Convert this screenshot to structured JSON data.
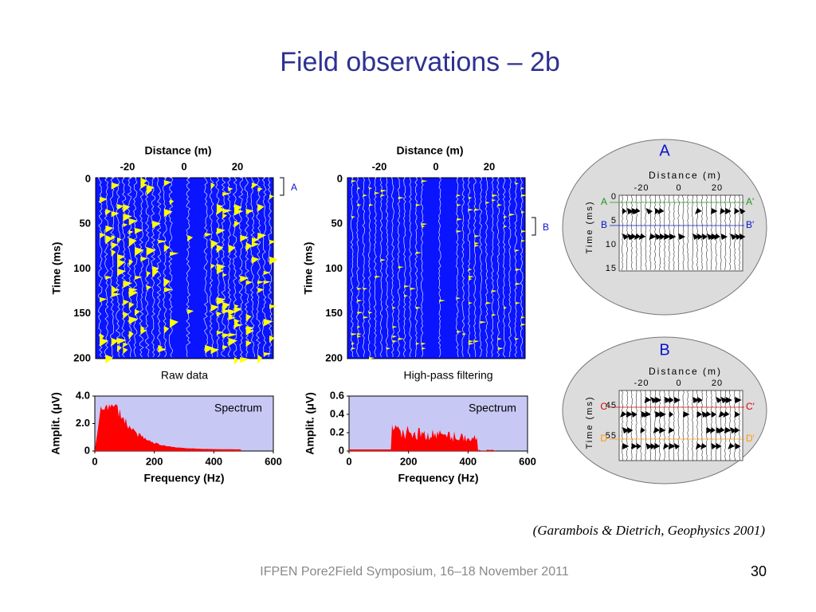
{
  "title": "Field observations – 2b",
  "panels": [
    {
      "x_label": "Distance (m)",
      "x_ticks": [
        "-20",
        "0",
        "20"
      ],
      "y_label": "Time (ms)",
      "y_ticks": [
        "0",
        "50",
        "100",
        "150",
        "200"
      ],
      "bracket": "A",
      "caption": "Raw data",
      "spectrum": {
        "label": "Spectrum",
        "y_label": "Amplit. (μV)",
        "y_ticks": [
          "0",
          "2.0",
          "4.0"
        ],
        "x_label": "Frequency (Hz)",
        "x_ticks": [
          "0",
          "200",
          "400",
          "600"
        ]
      }
    },
    {
      "x_label": "Distance (m)",
      "x_ticks": [
        "-20",
        "0",
        "20"
      ],
      "y_label": "Time (ms)",
      "y_ticks": [
        "0",
        "50",
        "100",
        "150",
        "200"
      ],
      "bracket": "B",
      "caption": "High-pass filtering",
      "spectrum": {
        "label": "Spectrum",
        "y_label": "Amplit. (μV)",
        "y_ticks": [
          "0",
          "0.2",
          "0.4",
          "0.6"
        ],
        "x_label": "Frequency (Hz)",
        "x_ticks": [
          "0",
          "200",
          "400",
          "600"
        ]
      }
    }
  ],
  "insets": [
    {
      "title": "A",
      "x_label": "Distance (m)",
      "x_ticks": [
        "-20",
        "0",
        "20"
      ],
      "y_label": "Time (ms)",
      "y_ticks": [
        "0",
        "5",
        "10",
        "15"
      ],
      "markers": [
        "A",
        "A'",
        "B",
        "B'"
      ]
    },
    {
      "title": "B",
      "x_label": "Distance (m)",
      "x_ticks": [
        "-20",
        "0",
        "20"
      ],
      "y_label": "Time (ms)",
      "y_ticks": [
        "45",
        "55"
      ],
      "markers": [
        "C",
        "C'",
        "D",
        "D'"
      ]
    }
  ],
  "citation": "(Garambois & Dietrich, Geophysics 2001)",
  "footer": "IFPEN Pore2Field Symposium, 16–18 November 2011",
  "page_number": "30"
}
